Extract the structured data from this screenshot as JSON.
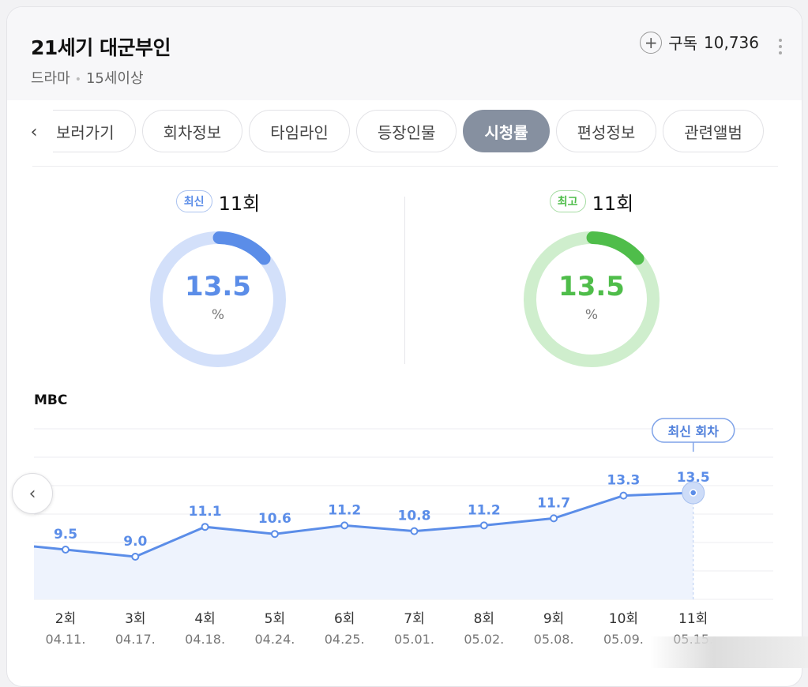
{
  "header": {
    "title": "21세기 대군부인",
    "genre": "드라마",
    "age_rating": "15세이상",
    "subscribe_label": "구독",
    "subscribe_count": "10,736"
  },
  "tabs": [
    {
      "label": "보러가기",
      "active": false
    },
    {
      "label": "회차정보",
      "active": false
    },
    {
      "label": "타임라인",
      "active": false
    },
    {
      "label": "등장인물",
      "active": false
    },
    {
      "label": "시청률",
      "active": true
    },
    {
      "label": "편성정보",
      "active": false
    },
    {
      "label": "관련앨범",
      "active": false
    }
  ],
  "latest": {
    "badge": "최신",
    "episode": "11회",
    "value": "13.5",
    "unit": "%",
    "fraction": 0.135
  },
  "highest": {
    "badge": "최고",
    "episode": "11회",
    "value": "13.5",
    "unit": "%",
    "fraction": 0.135
  },
  "colors": {
    "blue": "#5b8de8",
    "blue_light": "#d3e0fa",
    "green": "#4fbd4a",
    "green_light": "#cfeecd",
    "tab_active": "#8690a0"
  },
  "icons": {
    "plus": "plus-icon",
    "more": "more-vertical-icon",
    "prev": "chevron-left-icon"
  },
  "chart_data": {
    "type": "line",
    "title": "MBC",
    "categories": [
      "2회",
      "3회",
      "4회",
      "5회",
      "6회",
      "7회",
      "8회",
      "9회",
      "10회",
      "11회"
    ],
    "dates": [
      "04.11.",
      "04.17.",
      "04.18.",
      "04.24.",
      "04.25.",
      "05.01.",
      "05.02.",
      "05.08.",
      "05.09.",
      "05.15."
    ],
    "series": [
      {
        "values": [
          9.5,
          9.0,
          11.1,
          10.6,
          11.2,
          10.8,
          11.2,
          11.7,
          13.3,
          13.5
        ]
      }
    ],
    "annotation": "최신 회차",
    "grid": true
  }
}
